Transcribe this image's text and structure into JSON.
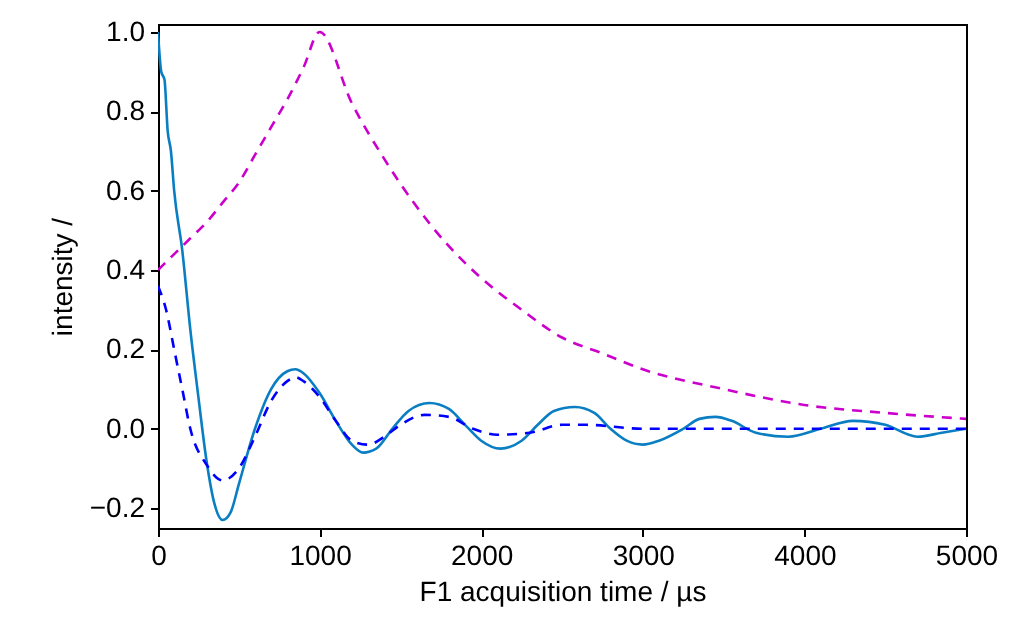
{
  "chart_data": {
    "type": "line",
    "xlabel": "F1 acquisition time / µs",
    "ylabel": "intensity /",
    "xlim": [
      0,
      5000
    ],
    "ylim": [
      -0.25,
      1.02
    ],
    "xticks": [
      0,
      1000,
      2000,
      3000,
      4000,
      5000
    ],
    "yticks": [
      {
        "value": -0.2,
        "label": "−0.2"
      },
      {
        "value": 0,
        "label": "0.0"
      },
      0.2,
      0.4,
      0.6,
      0.8,
      {
        "value": 1,
        "label": "1.0"
      }
    ],
    "series": [
      {
        "color": "#cc00cc",
        "line_style": "dashed",
        "x": [
          0,
          100,
          200,
          300,
          400,
          500,
          600,
          700,
          800,
          900,
          1000,
          1200,
          1400,
          1600,
          1800,
          2000,
          2250,
          2500,
          2750,
          3000,
          3500,
          4000,
          4500,
          5000
        ],
        "values": [
          0.4,
          0.44,
          0.48,
          0.52,
          0.57,
          0.62,
          0.69,
          0.76,
          0.83,
          0.91,
          1.0,
          0.82,
          0.68,
          0.56,
          0.46,
          0.38,
          0.3,
          0.23,
          0.19,
          0.15,
          0.1,
          0.06,
          0.04,
          0.025
        ]
      },
      {
        "color": "#0a7ec2",
        "line_style": "solid",
        "x": [
          0,
          20,
          40,
          60,
          80,
          100,
          150,
          200,
          250,
          300,
          350,
          400,
          450,
          500,
          600,
          700,
          800,
          850,
          900,
          1000,
          1100,
          1200,
          1270,
          1350,
          1450,
          1550,
          1680,
          1800,
          1900,
          2000,
          2120,
          2250,
          2350,
          2450,
          2580,
          2700,
          2800,
          2900,
          3000,
          3100,
          3250,
          3350,
          3450,
          3550,
          3700,
          3900,
          4100,
          4300,
          4500,
          4700,
          4850,
          5000
        ],
        "values": [
          1.0,
          0.9,
          0.88,
          0.75,
          0.7,
          0.6,
          0.45,
          0.25,
          0.08,
          -0.08,
          -0.19,
          -0.23,
          -0.21,
          -0.14,
          0.0,
          0.1,
          0.145,
          0.15,
          0.14,
          0.09,
          0.02,
          -0.04,
          -0.06,
          -0.05,
          0.0,
          0.045,
          0.065,
          0.05,
          0.01,
          -0.03,
          -0.05,
          -0.03,
          0.01,
          0.045,
          0.055,
          0.04,
          0.0,
          -0.03,
          -0.04,
          -0.03,
          0.0,
          0.025,
          0.03,
          0.02,
          -0.01,
          -0.02,
          0.0,
          0.02,
          0.01,
          -0.02,
          -0.01,
          0.0
        ]
      },
      {
        "color": "#0000ff",
        "line_style": "dashed",
        "x": [
          0,
          50,
          100,
          150,
          200,
          300,
          400,
          500,
          600,
          700,
          800,
          850,
          900,
          1000,
          1100,
          1200,
          1300,
          1400,
          1500,
          1650,
          1800,
          1950,
          2100,
          2300,
          2500,
          2650,
          3000,
          3500,
          4000,
          5000
        ],
        "values": [
          0.36,
          0.3,
          0.2,
          0.1,
          0.0,
          -0.09,
          -0.13,
          -0.1,
          -0.02,
          0.07,
          0.12,
          0.13,
          0.12,
          0.08,
          0.02,
          -0.03,
          -0.04,
          -0.02,
          0.01,
          0.035,
          0.03,
          0.0,
          -0.015,
          -0.01,
          0.01,
          0.01,
          0.0,
          0.0,
          0.0,
          0.0
        ]
      }
    ]
  }
}
